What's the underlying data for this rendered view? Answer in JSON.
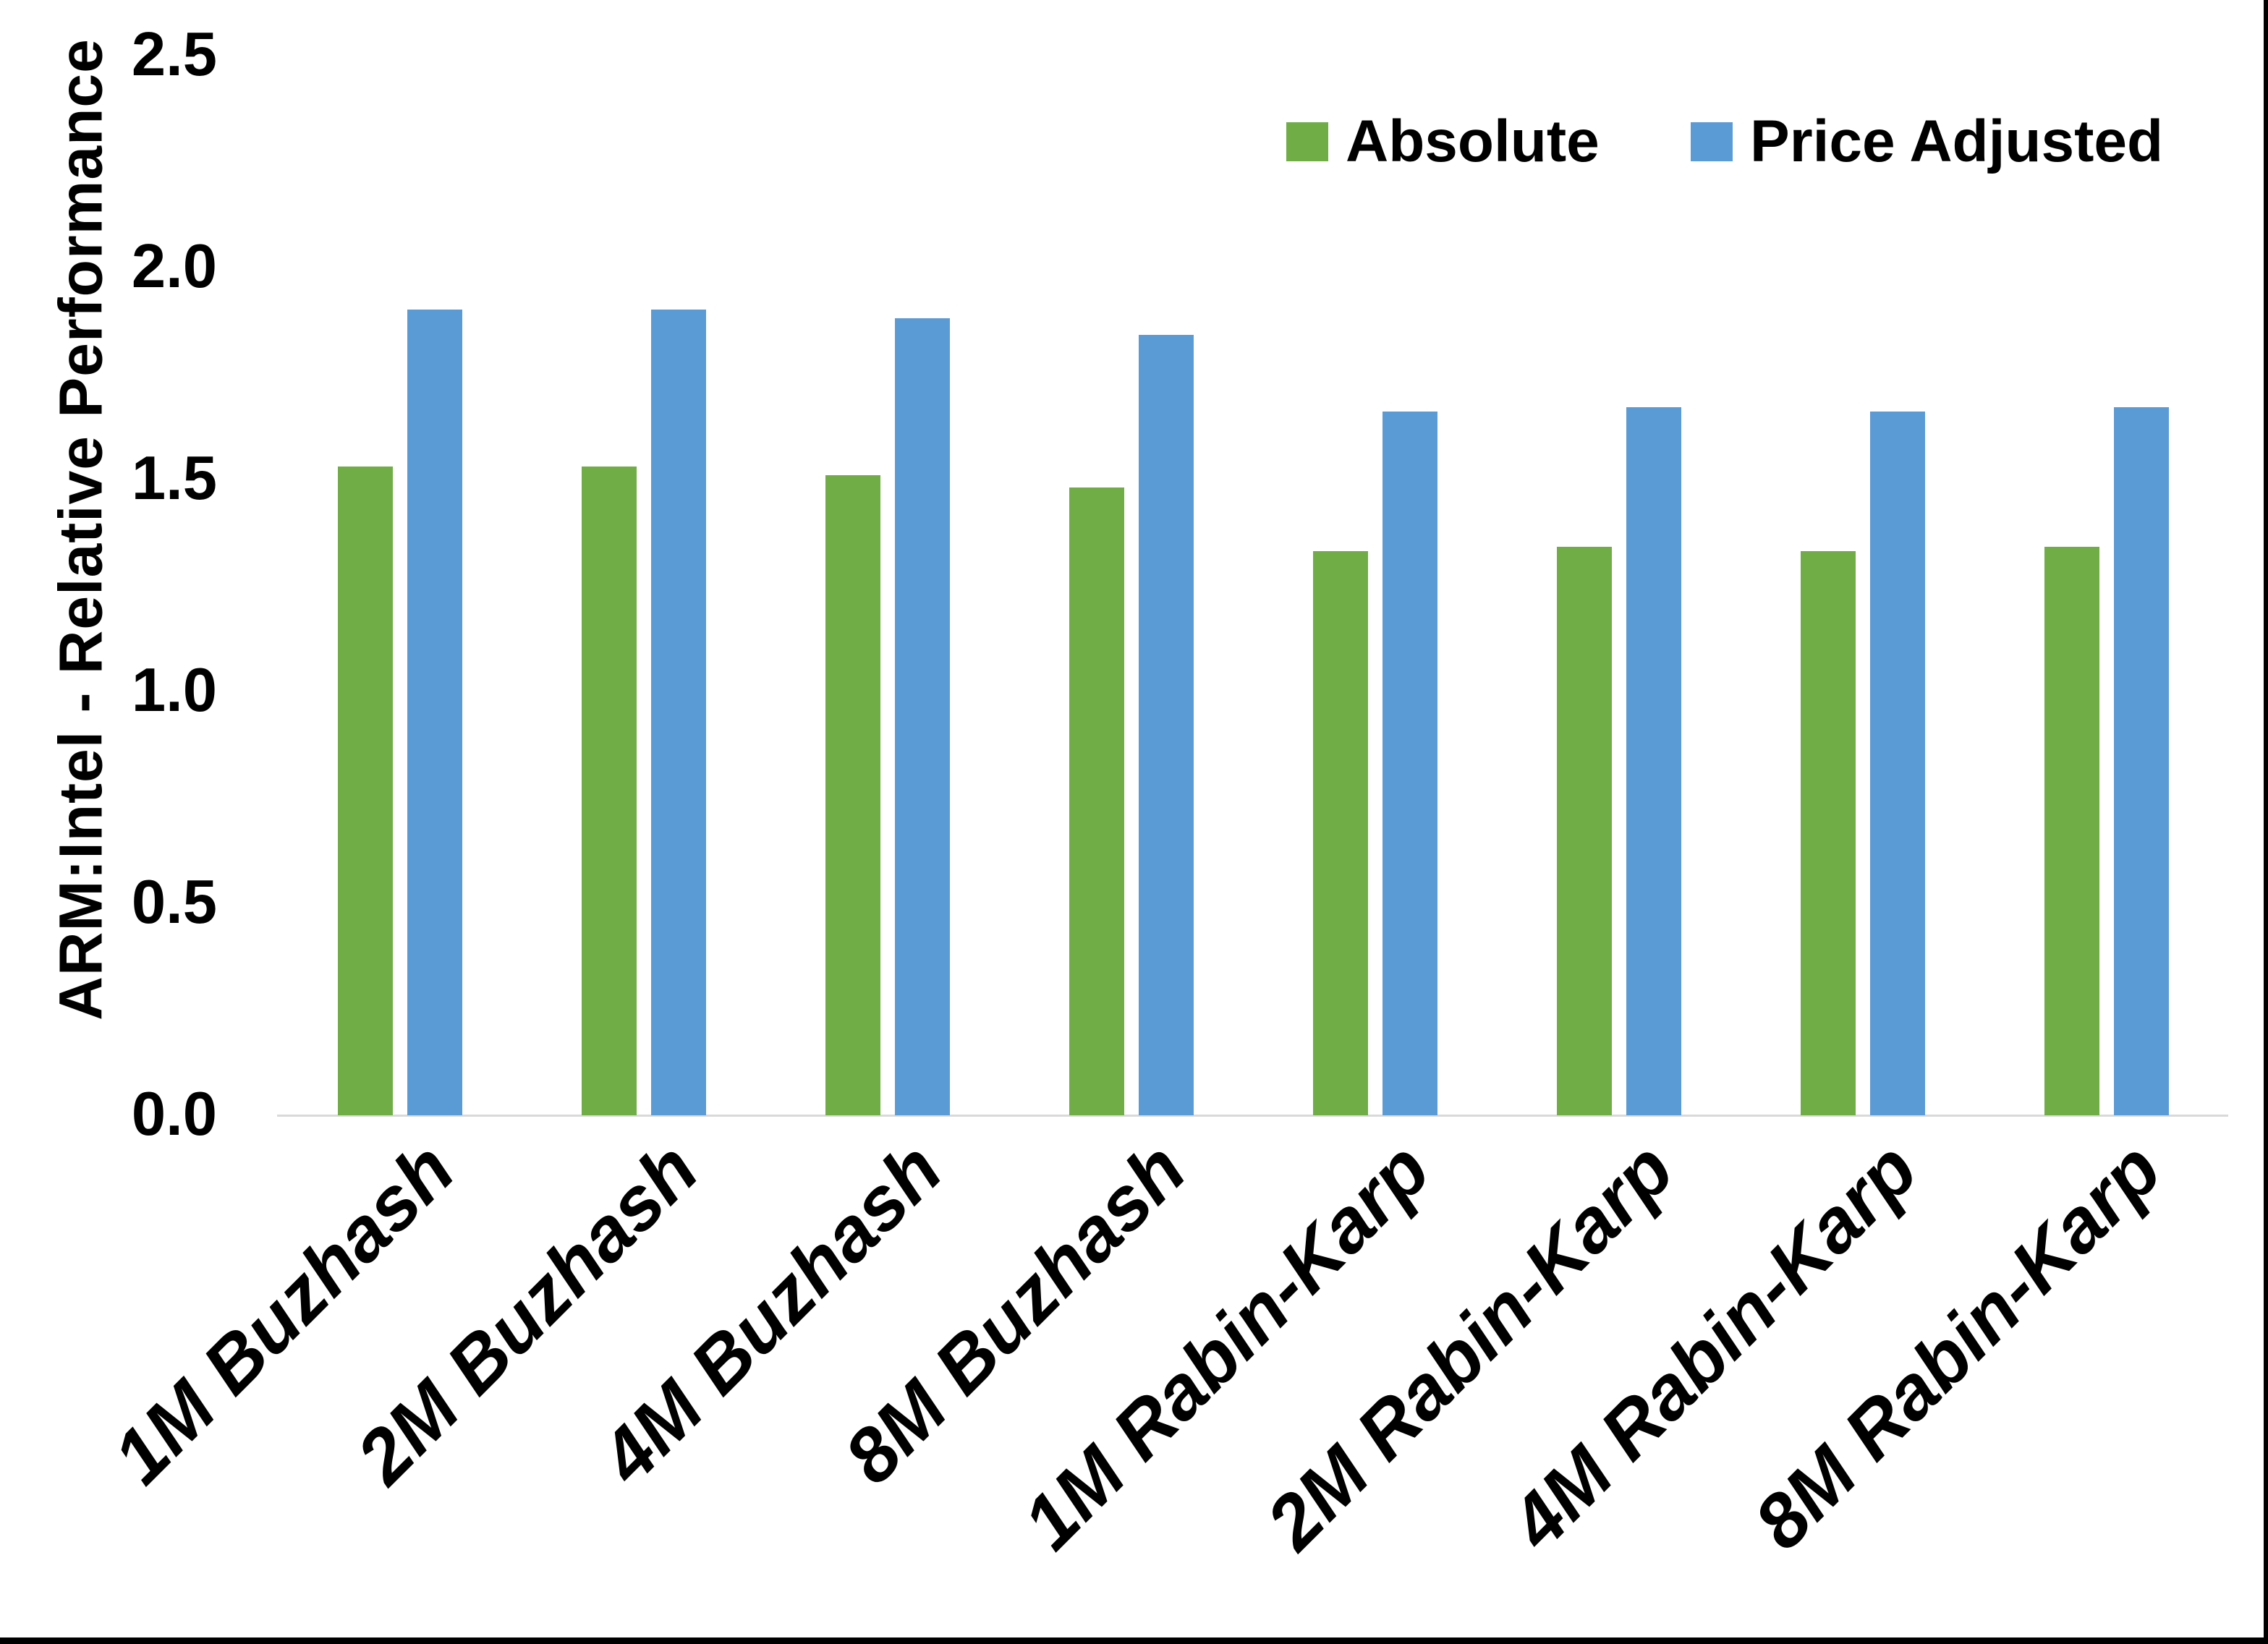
{
  "figure": {
    "background_color": "#ffffff",
    "edge_border_color": "#000000"
  },
  "chart_data": {
    "type": "bar",
    "title": "",
    "xlabel": "",
    "ylabel": "ARM:Intel - Relative Performance",
    "ylim": [
      0.0,
      2.5
    ],
    "ytick_step": 0.5,
    "ytick_labels": [
      "0.0",
      "0.5",
      "1.0",
      "1.5",
      "2.0",
      "2.5"
    ],
    "grid": false,
    "axis_line_color": "#d9d9d9",
    "legend_position": "top-right-inside",
    "categories": [
      "1M Buzhash",
      "2M Buzhash",
      "4M Buzhash",
      "8M Buzhash",
      "1M Rabin-Karp",
      "2M Rabin-Karp",
      "4M Rabin-Karp",
      "8M Rabin-Karp"
    ],
    "series": [
      {
        "name": "Absolute",
        "color": "#70AD47",
        "values": [
          1.53,
          1.53,
          1.51,
          1.48,
          1.33,
          1.34,
          1.33,
          1.34
        ]
      },
      {
        "name": "Price Adjusted",
        "color": "#5B9BD5",
        "values": [
          1.9,
          1.9,
          1.88,
          1.84,
          1.66,
          1.67,
          1.66,
          1.67
        ]
      }
    ]
  }
}
